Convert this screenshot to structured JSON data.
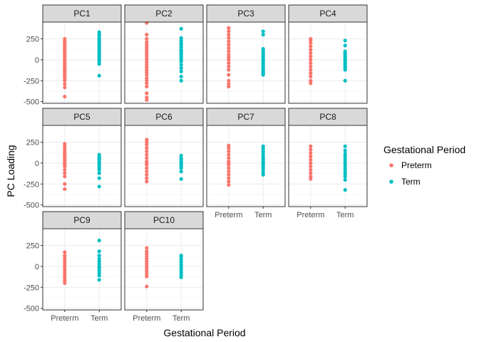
{
  "chart_data": {
    "type": "scatter",
    "facet_layout": "wrap-4-columns",
    "xlabel": "Gestational Period",
    "ylabel": "PC Loading",
    "categories": [
      "Preterm",
      "Term"
    ],
    "y_ticks": [
      250,
      0,
      -250,
      -500
    ],
    "ylim": [
      -520,
      450
    ],
    "grid": true,
    "legend": {
      "title": "Gestational Period",
      "placement": "right",
      "entries": [
        {
          "label": "Preterm",
          "color": "#F8766D"
        },
        {
          "label": "Term",
          "color": "#00BFC4"
        }
      ]
    },
    "panels": [
      {
        "title": "PC1",
        "Preterm": [
          -440,
          -330,
          -290,
          -250,
          -220,
          -200,
          -180,
          -160,
          -140,
          -120,
          -100,
          -80,
          -60,
          -40,
          -20,
          0,
          20,
          40,
          60,
          80,
          100,
          120,
          140,
          160,
          180,
          200,
          220,
          250
        ],
        "Term": [
          -190,
          -50,
          -20,
          0,
          20,
          40,
          60,
          80,
          100,
          120,
          140,
          160,
          180,
          200,
          220,
          240,
          260,
          290,
          310,
          330
        ]
      },
      {
        "title": "PC2",
        "Preterm": [
          -480,
          -450,
          -400,
          -320,
          -280,
          -250,
          -220,
          -180,
          -150,
          -120,
          -90,
          -60,
          -30,
          0,
          30,
          60,
          90,
          120,
          150,
          180,
          210,
          250,
          300,
          440
        ],
        "Term": [
          -250,
          -200,
          -140,
          -100,
          -60,
          -20,
          0,
          20,
          40,
          60,
          80,
          100,
          120,
          150,
          180,
          200,
          230,
          260,
          370
        ]
      },
      {
        "title": "PC3",
        "Preterm": [
          -320,
          -290,
          -250,
          -180,
          -120,
          -80,
          -40,
          0,
          30,
          60,
          100,
          140,
          180,
          220,
          260,
          300,
          340,
          380
        ],
        "Term": [
          -180,
          -160,
          -140,
          -120,
          -100,
          -80,
          -60,
          -40,
          -20,
          0,
          20,
          40,
          60,
          80,
          100,
          130,
          300,
          340
        ]
      },
      {
        "title": "PC4",
        "Preterm": [
          -280,
          -250,
          -200,
          -160,
          -120,
          -80,
          -40,
          0,
          40,
          80,
          120,
          160,
          200,
          230,
          250
        ],
        "Term": [
          -250,
          -120,
          -100,
          -80,
          -60,
          -40,
          -20,
          0,
          20,
          40,
          60,
          80,
          100,
          170,
          230
        ]
      },
      {
        "title": "PC5",
        "Preterm": [
          -310,
          -250,
          -160,
          -120,
          -80,
          -40,
          -20,
          0,
          20,
          40,
          60,
          80,
          100,
          120,
          150,
          180,
          210,
          230
        ],
        "Term": [
          -280,
          -180,
          -120,
          -80,
          -60,
          -40,
          -20,
          0,
          20,
          40,
          60,
          80,
          100
        ]
      },
      {
        "title": "PC6",
        "Preterm": [
          -220,
          -180,
          -140,
          -100,
          -60,
          -20,
          0,
          20,
          60,
          100,
          140,
          180,
          220,
          250,
          280
        ],
        "Term": [
          -190,
          -100,
          -60,
          -40,
          -20,
          0,
          20,
          40,
          60,
          90
        ]
      },
      {
        "title": "PC7",
        "Preterm": [
          -260,
          -220,
          -180,
          -140,
          -100,
          -60,
          -20,
          0,
          20,
          60,
          100,
          140,
          180,
          210
        ],
        "Term": [
          -140,
          -110,
          -80,
          -60,
          -40,
          -20,
          0,
          20,
          40,
          60,
          80,
          110,
          140,
          170,
          200
        ]
      },
      {
        "title": "PC8",
        "Preterm": [
          -190,
          -160,
          -120,
          -80,
          -40,
          0,
          40,
          80,
          120,
          160,
          200
        ],
        "Term": [
          -320,
          -200,
          -160,
          -130,
          -100,
          -70,
          -40,
          -10,
          20,
          50,
          80,
          110,
          150,
          200
        ]
      },
      {
        "title": "PC9",
        "Preterm": [
          -200,
          -170,
          -140,
          -110,
          -80,
          -50,
          -20,
          10,
          40,
          70,
          100,
          130,
          170
        ],
        "Term": [
          -160,
          -110,
          -80,
          -50,
          -20,
          0,
          30,
          60,
          90,
          130,
          180,
          310
        ]
      },
      {
        "title": "PC10",
        "Preterm": [
          -240,
          -120,
          -90,
          -60,
          -30,
          0,
          30,
          60,
          90,
          120,
          150,
          180,
          220
        ],
        "Term": [
          -130,
          -100,
          -70,
          -40,
          -10,
          20,
          50,
          80,
          110,
          130
        ]
      }
    ]
  }
}
